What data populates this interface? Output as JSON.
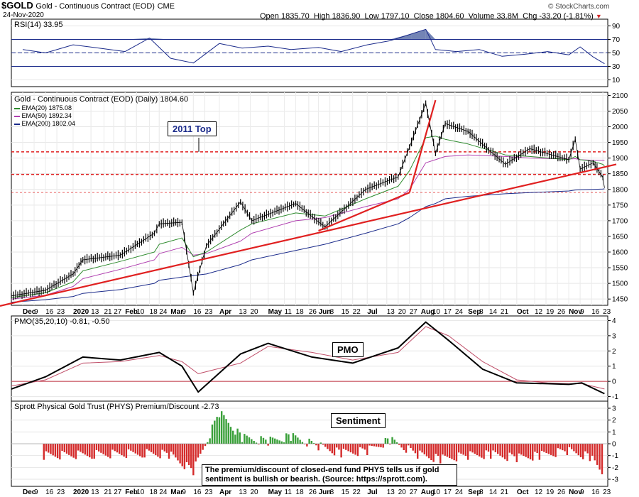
{
  "header": {
    "symbol": "$GOLD",
    "name": "Gold - Continuous Contract (EOD)",
    "exchange": "CME",
    "date": "24-Nov-2020",
    "open_label": "Open",
    "open": "1835.70",
    "high_label": "High",
    "high": "1836.90",
    "low_label": "Low",
    "low": "1797.10",
    "close_label": "Close",
    "close": "1804.60",
    "volume_label": "Volume",
    "volume": "33.8M",
    "chg_label": "Chg",
    "chg": "-33.20 (-1.81%)",
    "chg_marker": "▼",
    "watermark": "© StockCharts.com"
  },
  "colors": {
    "price": "#000000",
    "ema20": "#2e8b2e",
    "ema50": "#b040b0",
    "ema200": "#1a2a8a",
    "trend": "#e02020",
    "rsi_fill": "#5b6fa8",
    "pmo_signal": "#c0506a",
    "sent_pos": "#3aa03a",
    "sent_neg": "#d42a2a"
  },
  "chart_data": [
    {
      "type": "line",
      "title": "RSI(14) 33.95",
      "y_ticks": [
        10,
        30,
        50,
        70,
        90
      ],
      "overbought": 70,
      "oversold": 30,
      "midline": 50,
      "x": [
        "2019-12-02",
        "2019-12-16",
        "2020-01-02",
        "2020-01-15",
        "2020-02-03",
        "2020-02-18",
        "2020-03-02",
        "2020-03-16",
        "2020-04-01",
        "2020-04-15",
        "2020-05-01",
        "2020-05-15",
        "2020-06-01",
        "2020-06-15",
        "2020-07-01",
        "2020-07-15",
        "2020-07-28",
        "2020-08-06",
        "2020-08-12",
        "2020-08-25",
        "2020-09-08",
        "2020-09-22",
        "2020-10-06",
        "2020-10-20",
        "2020-11-02",
        "2020-11-09",
        "2020-11-17",
        "2020-11-24"
      ],
      "values": [
        55,
        50,
        62,
        58,
        52,
        72,
        42,
        35,
        64,
        57,
        60,
        55,
        58,
        52,
        62,
        68,
        78,
        85,
        55,
        52,
        55,
        45,
        48,
        52,
        47,
        59,
        44,
        33.95
      ]
    },
    {
      "type": "line",
      "title": "Gold - Continuous Contract (EOD) (Daily) 1804.60",
      "y_ticks": [
        1450,
        1500,
        1550,
        1600,
        1650,
        1700,
        1750,
        1800,
        1850,
        1900,
        1950,
        2000,
        2050,
        2100
      ],
      "ylim": [
        1430,
        2110
      ],
      "x_ticks": [
        "Dec",
        "9",
        "16",
        "23",
        "2020",
        "13",
        "21",
        "27",
        "Feb",
        "10",
        "18",
        "24",
        "Mar",
        "9",
        "16",
        "23",
        "Apr",
        "13",
        "20",
        "May",
        "11",
        "18",
        "26",
        "Jun",
        "8",
        "15",
        "22",
        "Jul",
        "13",
        "20",
        "27",
        "Aug",
        "10",
        "17",
        "24",
        "Sep",
        "8",
        "14",
        "21",
        "Oct",
        "12",
        "19",
        "26",
        "Nov",
        "9",
        "16",
        "23"
      ],
      "annotation": "2011 Top",
      "horizontal_lines": [
        1920,
        1848,
        1790
      ],
      "x": [
        "2019-11-25",
        "2019-12-16",
        "2020-01-02",
        "2020-01-08",
        "2020-01-31",
        "2020-02-21",
        "2020-02-24",
        "2020-03-09",
        "2020-03-16",
        "2020-03-24",
        "2020-04-14",
        "2020-04-21",
        "2020-05-18",
        "2020-06-05",
        "2020-06-30",
        "2020-07-20",
        "2020-07-27",
        "2020-08-06",
        "2020-08-12",
        "2020-08-18",
        "2020-09-01",
        "2020-09-24",
        "2020-10-09",
        "2020-11-02",
        "2020-11-06",
        "2020-11-09",
        "2020-11-17",
        "2020-11-23",
        "2020-11-24"
      ],
      "series": [
        {
          "name": "Gold",
          "values": [
            1460,
            1478,
            1530,
            1575,
            1590,
            1660,
            1690,
            1695,
            1470,
            1620,
            1760,
            1700,
            1755,
            1680,
            1800,
            1840,
            1935,
            2075,
            1915,
            2010,
            1985,
            1880,
            1930,
            1895,
            1960,
            1865,
            1885,
            1838,
            1804.6
          ]
        },
        {
          "name": "EMA(20) 1875.08",
          "values": [
            1455,
            1470,
            1505,
            1540,
            1570,
            1600,
            1625,
            1645,
            1585,
            1600,
            1670,
            1690,
            1725,
            1715,
            1770,
            1810,
            1860,
            1965,
            1970,
            1960,
            1945,
            1910,
            1905,
            1895,
            1905,
            1895,
            1890,
            1880,
            1875.08
          ]
        },
        {
          "name": "EMA(50) 1892.34",
          "values": [
            1450,
            1462,
            1490,
            1515,
            1545,
            1575,
            1595,
            1615,
            1590,
            1595,
            1635,
            1660,
            1700,
            1710,
            1745,
            1770,
            1800,
            1885,
            1895,
            1905,
            1910,
            1905,
            1900,
            1897,
            1898,
            1895,
            1893,
            1893,
            1892.34
          ]
        },
        {
          "name": "EMA(200) 1802.04",
          "values": [
            1440,
            1448,
            1458,
            1468,
            1480,
            1500,
            1510,
            1520,
            1525,
            1530,
            1560,
            1575,
            1605,
            1625,
            1660,
            1690,
            1710,
            1745,
            1755,
            1770,
            1778,
            1786,
            1790,
            1795,
            1798,
            1799,
            1800,
            1801,
            1802.04
          ]
        }
      ]
    },
    {
      "type": "line",
      "title": "PMO(35,20,10) -0.81, -0.50",
      "annotation": "PMO",
      "y_ticks": [
        -1,
        0,
        1,
        2,
        3,
        4
      ],
      "zero_line": 0,
      "x": [
        "2019-11-25",
        "2019-12-16",
        "2020-01-08",
        "2020-01-31",
        "2020-02-24",
        "2020-03-09",
        "2020-03-19",
        "2020-04-14",
        "2020-05-01",
        "2020-05-28",
        "2020-06-22",
        "2020-07-20",
        "2020-08-06",
        "2020-08-20",
        "2020-09-10",
        "2020-10-01",
        "2020-10-20",
        "2020-11-02",
        "2020-11-10",
        "2020-11-24"
      ],
      "series": [
        {
          "name": "PMO",
          "values": [
            -0.5,
            0.3,
            1.6,
            1.4,
            1.9,
            1.0,
            -0.7,
            1.8,
            2.5,
            1.6,
            1.2,
            2.2,
            3.9,
            2.7,
            0.8,
            -0.1,
            -0.15,
            -0.2,
            -0.1,
            -0.81
          ]
        },
        {
          "name": "Signal",
          "values": [
            -0.3,
            0.1,
            1.2,
            1.3,
            1.7,
            1.3,
            0.5,
            1.2,
            2.3,
            1.9,
            1.4,
            1.9,
            3.6,
            3.0,
            1.3,
            0.1,
            -0.1,
            -0.15,
            -0.15,
            -0.5
          ]
        }
      ]
    },
    {
      "type": "bar",
      "title": "Sprott Physical Gold Trust (PHYS) Premium/Discount -2.73",
      "annotation": "Sentiment",
      "note": "The premium/discount of closed-end fund PHYS tells us if gold sentiment is bullish or bearish. (Source: https://sprott.com).",
      "y_ticks": [
        -3,
        -2,
        -1,
        0,
        1,
        2,
        3
      ],
      "x": [
        "2019-12",
        "2020-01",
        "2020-02",
        "2020-03-01",
        "2020-03-16",
        "2020-04-01",
        "2020-04-15",
        "2020-05-01",
        "2020-05-15",
        "2020-06-01",
        "2020-06-15",
        "2020-07-01",
        "2020-07-15",
        "2020-08-01",
        "2020-08-15",
        "2020-09-01",
        "2020-09-15",
        "2020-10-01",
        "2020-10-15",
        "2020-11-01",
        "2020-11-15",
        "2020-11-24"
      ],
      "values": [
        -1.0,
        -0.9,
        -0.8,
        -0.9,
        -2.3,
        2.6,
        0.5,
        0.2,
        0.6,
        -0.2,
        -0.8,
        -0.6,
        0.3,
        -0.9,
        -1.3,
        -1.0,
        -0.9,
        -1.2,
        -1.0,
        -0.6,
        -1.1,
        -2.73
      ]
    }
  ]
}
